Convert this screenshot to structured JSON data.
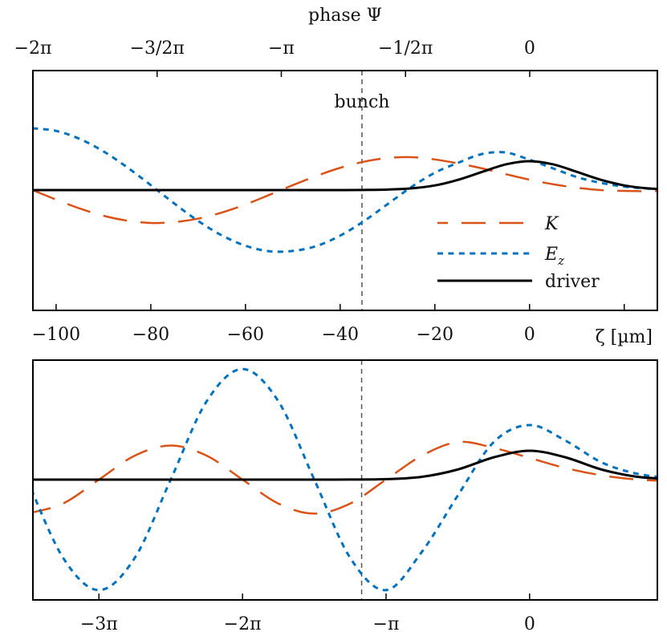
{
  "colors": {
    "K": "#D95319",
    "Ez": "#0072BD",
    "driver": "#000000",
    "bunch_line": "#555555",
    "axes": "#000000"
  },
  "chart_data": [
    {
      "type": "line",
      "panel": "top",
      "xlabel": "ζ [µm]",
      "x2label": "phase Ψ",
      "xlim": [
        -104.9,
        27
      ],
      "x2lim": [
        -2,
        0.514
      ],
      "ylim": [
        -4.17,
        4.14
      ],
      "grid": false,
      "legend_placement": "lower-right",
      "xticks": [
        -100,
        -80,
        -60,
        -40,
        -20,
        0,
        20
      ],
      "xticklabels": [
        "−100",
        "−80",
        "−60",
        "−40",
        "−20",
        "0",
        ""
      ],
      "x2ticks": [
        -2,
        -1.5,
        -1,
        -0.5,
        0
      ],
      "x2ticklabels": [
        "−2π",
        "−3/2π",
        "−π",
        "−1/2π",
        "0"
      ],
      "annotation": {
        "text": "bunch",
        "x": -35.4
      },
      "x": [
        -105,
        -100,
        -95,
        -90,
        -85,
        -80,
        -75,
        -70,
        -65,
        -60,
        -55,
        -50,
        -45,
        -40,
        -35,
        -30,
        -25,
        -20,
        -15,
        -10,
        -5,
        0,
        5,
        10,
        15,
        20,
        25,
        30
      ],
      "series": [
        {
          "name": "K",
          "values": [
            0,
            -0.33,
            -0.64,
            -0.89,
            -1.06,
            -1.14,
            -1.11,
            -0.99,
            -0.78,
            -0.5,
            -0.17,
            0.17,
            0.49,
            0.77,
            0.98,
            1.11,
            1.14,
            1.06,
            0.92,
            0.75,
            0.55,
            0.36,
            0.2,
            0.08,
            0.0,
            -0.03,
            -0.04,
            -0.04
          ]
        },
        {
          "name": "E_z",
          "values": [
            2.14,
            2.05,
            1.77,
            1.34,
            0.79,
            0.17,
            -0.47,
            -1.07,
            -1.57,
            -1.93,
            -2.12,
            -2.11,
            -1.94,
            -1.58,
            -1.08,
            -0.49,
            0.1,
            0.6,
            0.95,
            1.25,
            1.3,
            1.05,
            0.75,
            0.45,
            0.25,
            0.12,
            0.05,
            0.02
          ]
        },
        {
          "name": "driver",
          "values": [
            0,
            0,
            0,
            0,
            0,
            0,
            0,
            0,
            0,
            0,
            0,
            0,
            0,
            0,
            0.004,
            0.017,
            0.058,
            0.16,
            0.36,
            0.63,
            0.89,
            1,
            0.89,
            0.63,
            0.36,
            0.16,
            0.058,
            0.017
          ]
        }
      ]
    },
    {
      "type": "line",
      "panel": "bottom",
      "xlabel": "",
      "xlim": [
        -3.46,
        0.89
      ],
      "ylim": [
        -4.17,
        4.14
      ],
      "grid": false,
      "xticks": [
        -3,
        -2,
        -1,
        0
      ],
      "xticklabels": [
        "−3π",
        "−2π",
        "−π",
        "0"
      ],
      "annotation": {
        "x": -1.17
      },
      "x": [
        -3.5,
        -3.25,
        -3,
        -2.75,
        -2.5,
        -2.25,
        -2,
        -1.75,
        -1.5,
        -1.25,
        -1,
        -0.75,
        -0.5,
        -0.25,
        0,
        0.25,
        0.5,
        0.75,
        1.0
      ],
      "series": [
        {
          "name": "K",
          "values": [
            -1.18,
            -0.83,
            0,
            0.83,
            1.18,
            0.83,
            0,
            -0.83,
            -1.18,
            -0.83,
            0,
            0.83,
            1.3,
            1.1,
            0.75,
            0.4,
            0.15,
            0.0,
            -0.05
          ]
        },
        {
          "name": "E_z",
          "values": [
            0,
            -2.71,
            -3.83,
            -2.71,
            0,
            2.71,
            3.83,
            2.71,
            0,
            -2.71,
            -3.83,
            -2.5,
            -0.55,
            1.3,
            1.89,
            1.35,
            0.6,
            0.2,
            0.05
          ]
        },
        {
          "name": "driver",
          "values": [
            0,
            0,
            0,
            0,
            0,
            0,
            0,
            0,
            0,
            0.0015,
            0.015,
            0.096,
            0.35,
            0.77,
            1,
            0.77,
            0.35,
            0.096,
            0.015
          ]
        }
      ]
    }
  ],
  "legend": {
    "K": "K",
    "E": "E",
    "z": "z",
    "driver": "driver"
  }
}
